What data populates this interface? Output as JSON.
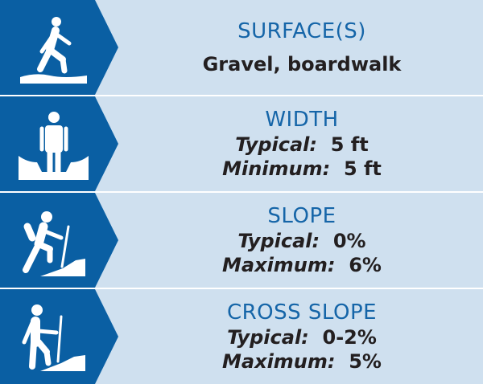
{
  "colors": {
    "panel": "#0a5fa3",
    "background": "#cfe0ef",
    "title": "#1565a8",
    "text": "#231f20"
  },
  "rows": [
    {
      "icon": "walking-person-icon",
      "title": "SURFACE(S)",
      "value": "Gravel, boardwalk"
    },
    {
      "icon": "standing-person-width-icon",
      "title": "WIDTH",
      "lines": [
        {
          "label": "Typical:",
          "value": "5 ft"
        },
        {
          "label": "Minimum:",
          "value": "5 ft"
        }
      ]
    },
    {
      "icon": "hiker-uphill-icon",
      "title": "SLOPE",
      "lines": [
        {
          "label": "Typical:",
          "value": "0%"
        },
        {
          "label": "Maximum:",
          "value": "6%"
        }
      ]
    },
    {
      "icon": "hiker-cross-slope-icon",
      "title": "CROSS SLOPE",
      "lines": [
        {
          "label": "Typical:",
          "value": "0-2%"
        },
        {
          "label": "Maximum:",
          "value": "5%"
        }
      ]
    }
  ]
}
